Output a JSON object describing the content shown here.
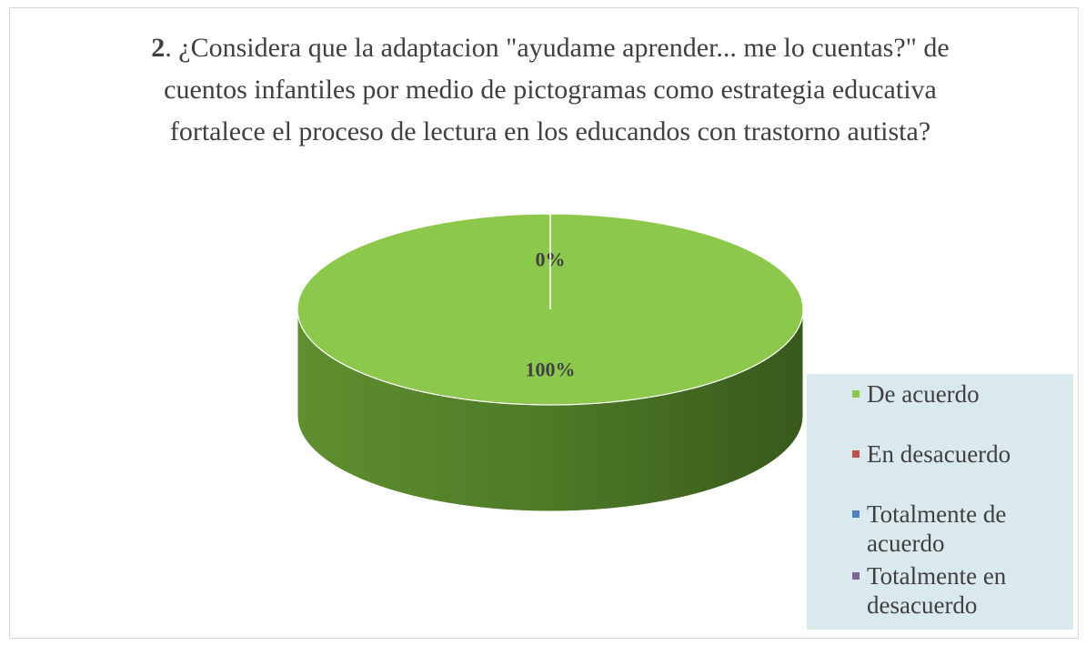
{
  "chart_data": {
    "type": "pie3d",
    "title_number": "2",
    "title": ". ¿Considera que la adaptacion \"ayudame aprender... me lo cuentas?\" de cuentos infantiles por medio de pictogramas como estrategia educativa fortalece el proceso de lectura en los educandos con trastorno autista?",
    "categories": [
      "De acuerdo",
      "En desacuerdo",
      "Totalmente de acuerdo",
      "Totalmente en desacuerdo"
    ],
    "values": [
      100,
      0,
      0,
      0
    ],
    "value_labels": [
      "100%",
      "0%",
      null,
      null
    ],
    "colors": [
      "#8cc84b",
      "#c0504d",
      "#4f81bd",
      "#8064a2"
    ],
    "legend": "right"
  }
}
